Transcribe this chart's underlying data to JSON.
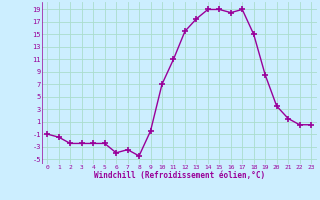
{
  "x": [
    0,
    1,
    2,
    3,
    4,
    5,
    6,
    7,
    8,
    9,
    10,
    11,
    12,
    13,
    14,
    15,
    16,
    17,
    18,
    19,
    20,
    21,
    22,
    23
  ],
  "y": [
    -1,
    -1.5,
    -2.5,
    -2.5,
    -2.5,
    -2.5,
    -4,
    -3.5,
    -4.5,
    -0.5,
    7,
    11,
    15.5,
    17.5,
    19,
    19,
    18.5,
    19,
    15,
    8.5,
    3.5,
    1.5,
    0.5,
    0.5
  ],
  "line_color": "#990099",
  "marker": "+",
  "markersize": 4,
  "bg_color": "#cceeff",
  "grid_color": "#aaddcc",
  "xlabel": "Windchill (Refroidissement éolien,°C)",
  "xlabel_color": "#990099",
  "tick_color": "#990099",
  "yticks": [
    -5,
    -3,
    -1,
    1,
    3,
    5,
    7,
    9,
    11,
    13,
    15,
    17,
    19
  ],
  "xticks": [
    0,
    1,
    2,
    3,
    4,
    5,
    6,
    7,
    8,
    9,
    10,
    11,
    12,
    13,
    14,
    15,
    16,
    17,
    18,
    19,
    20,
    21,
    22,
    23
  ],
  "ylim": [
    -5.8,
    20.2
  ],
  "xlim": [
    -0.5,
    23.5
  ]
}
